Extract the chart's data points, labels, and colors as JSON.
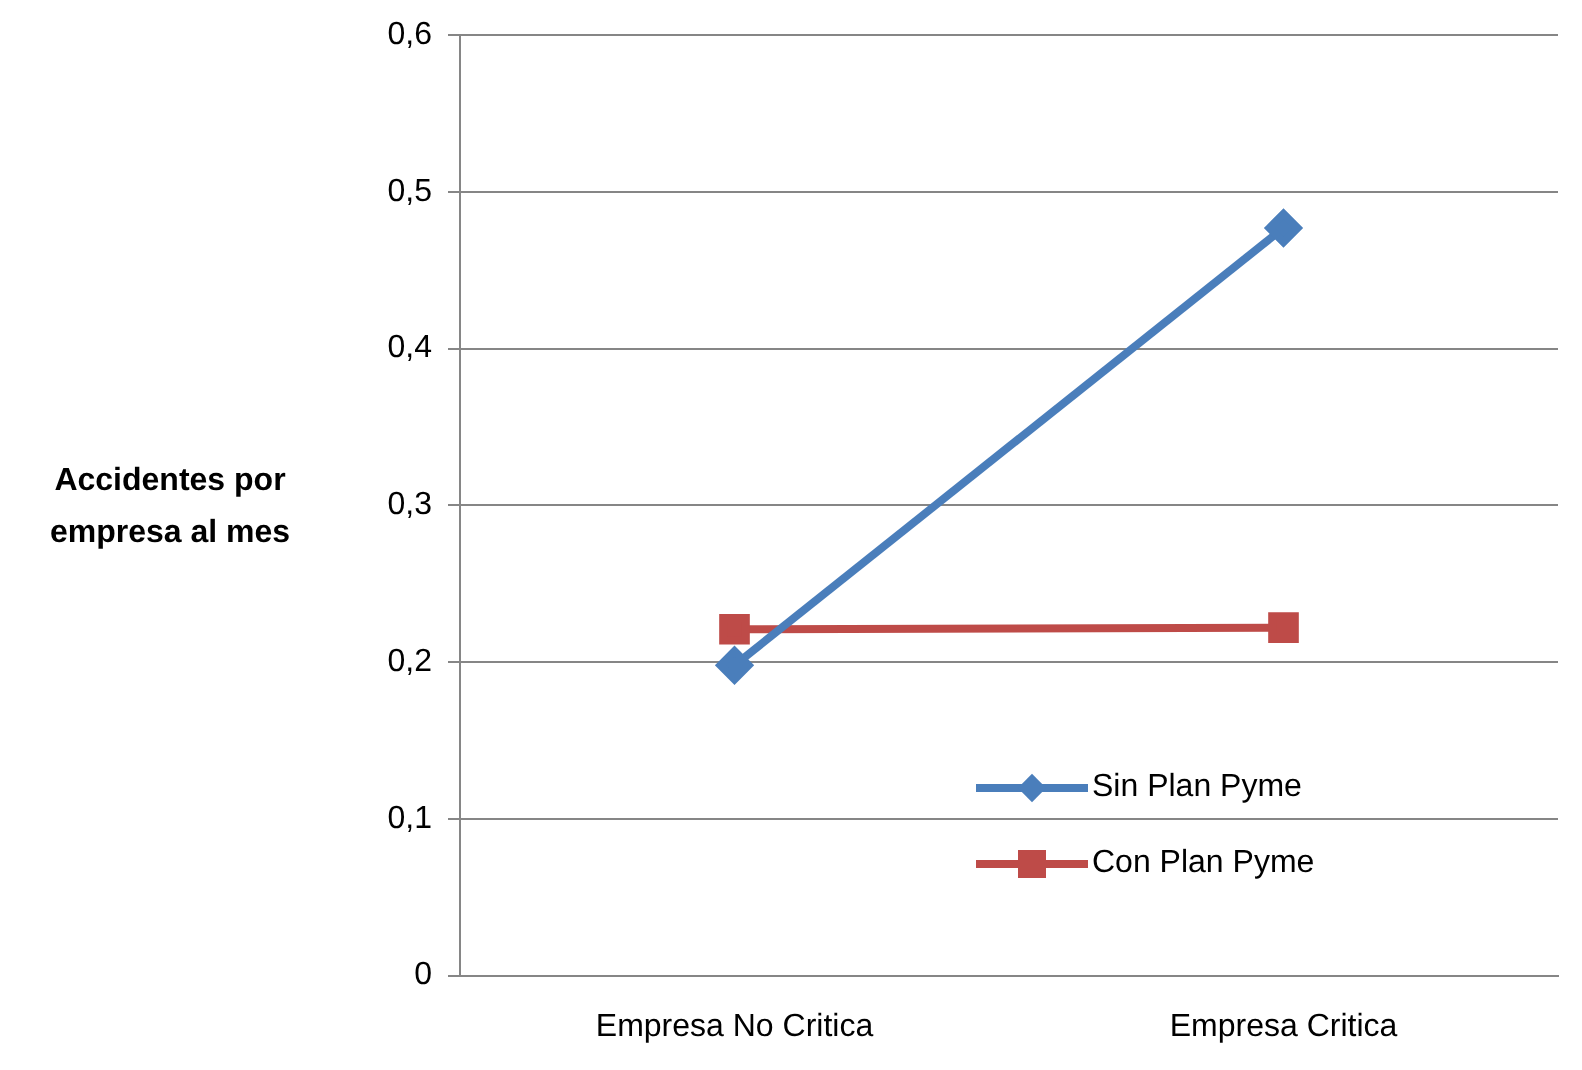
{
  "chart_data": {
    "type": "line",
    "ylabel": "Accidentes por\nempresa al mes",
    "categories": [
      "Empresa No Critica",
      "Empresa Critica"
    ],
    "series": [
      {
        "name": "Sin Plan Pyme",
        "color": "#4a7ebb",
        "marker": "diamond",
        "values": [
          0.198,
          0.477
        ]
      },
      {
        "name": "Con Plan Pyme",
        "color": "#be4b48",
        "marker": "square",
        "values": [
          0.221,
          0.222
        ]
      }
    ],
    "ylim": [
      0,
      0.6
    ],
    "yticks": [
      {
        "value": 0,
        "label": "0"
      },
      {
        "value": 0.1,
        "label": "0,1"
      },
      {
        "value": 0.2,
        "label": "0,2"
      },
      {
        "value": 0.3,
        "label": "0,3"
      },
      {
        "value": 0.4,
        "label": "0,4"
      },
      {
        "value": 0.5,
        "label": "0,5"
      },
      {
        "value": 0.6,
        "label": "0,6"
      }
    ],
    "grid": "y",
    "legend": "bottom right"
  }
}
